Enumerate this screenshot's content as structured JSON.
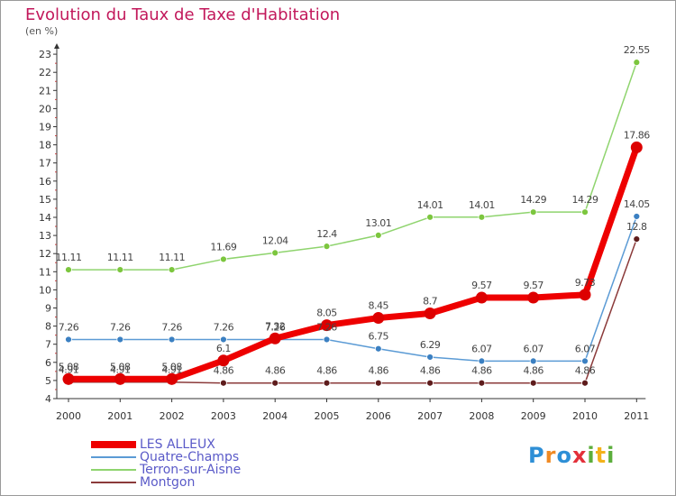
{
  "chart_data": {
    "type": "line",
    "title": "Evolution du Taux de Taxe d'Habitation",
    "subtitle": "(en %)",
    "categories": [
      "2000",
      "2001",
      "2002",
      "2003",
      "2004",
      "2005",
      "2006",
      "2007",
      "2008",
      "2009",
      "2010",
      "2011"
    ],
    "y_ticks": [
      "4",
      "5",
      "6",
      "7",
      "8",
      "9",
      "10",
      "11",
      "12",
      "13",
      "14",
      "15",
      "16",
      "17",
      "18",
      "19",
      "20",
      "21",
      "22",
      "23"
    ],
    "ylim": [
      4,
      23.5
    ],
    "grid": false,
    "legend_position": "bottom-left",
    "series": [
      {
        "name": "Terron-sur-Aisne",
        "color": "#8fd46e",
        "marker": "#7cc63e",
        "width": 1.5,
        "r": 3.5,
        "values": [
          11.11,
          11.11,
          11.11,
          11.69,
          12.04,
          12.4,
          13.01,
          14.01,
          14.01,
          14.29,
          14.29,
          22.55
        ],
        "labels": [
          "11.11",
          "11.11",
          "11.11",
          "11.69",
          "12.04",
          "12.4",
          "13.01",
          "14.01",
          "14.01",
          "14.29",
          "14.29",
          "22.55"
        ]
      },
      {
        "name": "Quatre-Champs",
        "color": "#5b9bd5",
        "marker": "#3b80c2",
        "width": 1.5,
        "r": 3.5,
        "values": [
          7.26,
          7.26,
          7.26,
          7.26,
          7.26,
          7.26,
          6.75,
          6.29,
          6.07,
          6.07,
          6.07,
          14.05
        ],
        "labels": [
          "7.26",
          "7.26",
          "7.26",
          "7.26",
          "7.26",
          "7.26",
          "6.75",
          "6.29",
          "6.07",
          "6.07",
          "6.07",
          "14.05"
        ]
      },
      {
        "name": "Montgon",
        "color": "#8b3a3a",
        "marker": "#5e1c1c",
        "width": 1.5,
        "r": 3.5,
        "values": [
          4.91,
          4.91,
          4.91,
          4.86,
          4.86,
          4.86,
          4.86,
          4.86,
          4.86,
          4.86,
          4.86,
          12.8
        ],
        "labels": [
          "4.91",
          "4.91",
          "4.91",
          "4.86",
          "4.86",
          "4.86",
          "4.86",
          "4.86",
          "4.86",
          "4.86",
          "4.86",
          "12.8"
        ]
      },
      {
        "name": "LES ALLEUX",
        "color": "#ee0000",
        "marker": "#dd0000",
        "width": 7,
        "r": 6.5,
        "values": [
          5.08,
          5.08,
          5.08,
          6.1,
          7.32,
          8.05,
          8.45,
          8.7,
          9.57,
          9.57,
          9.73,
          17.86
        ],
        "labels": [
          "5.08",
          "5.08",
          "5.08",
          "6.1",
          "7.32",
          "8.05",
          "8.45",
          "8.7",
          "9.57",
          "9.57",
          "9.73",
          "17.86"
        ]
      }
    ]
  },
  "legend": [
    {
      "label": "LES ALLEUX",
      "color": "#ee0000",
      "thickness": 8
    },
    {
      "label": "Quatre-Champs",
      "color": "#5b9bd5",
      "thickness": 2
    },
    {
      "label": "Terron-sur-Aisne",
      "color": "#8fd46e",
      "thickness": 2
    },
    {
      "label": "Montgon",
      "color": "#8b3a3a",
      "thickness": 2
    }
  ],
  "brand": {
    "text": "Proxiti"
  }
}
